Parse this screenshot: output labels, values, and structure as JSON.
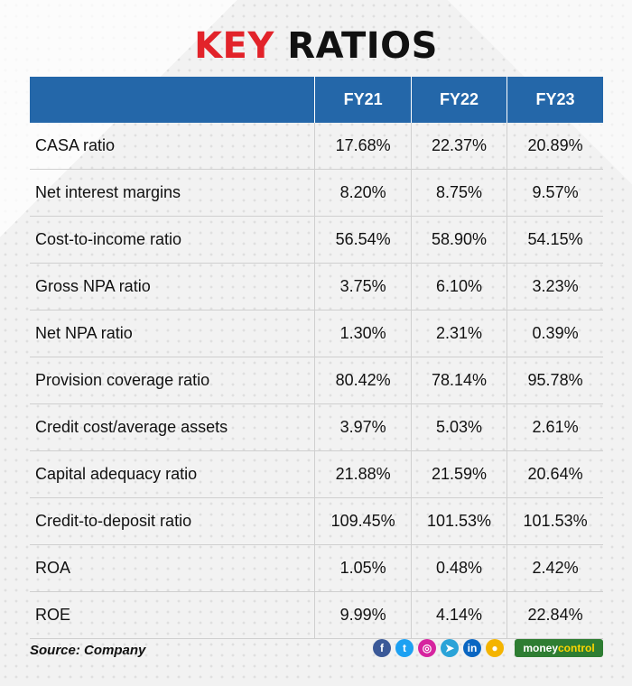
{
  "title": {
    "part1": "KEY",
    "part2": "RATIOS"
  },
  "table": {
    "columns": [
      "",
      "FY21",
      "FY22",
      "FY23"
    ],
    "rows": [
      {
        "label": "CASA ratio",
        "values": [
          "17.68%",
          "22.37%",
          "20.89%"
        ]
      },
      {
        "label": "Net interest margins",
        "values": [
          "8.20%",
          "8.75%",
          "9.57%"
        ]
      },
      {
        "label": "Cost-to-income ratio",
        "values": [
          "56.54%",
          "58.90%",
          "54.15%"
        ]
      },
      {
        "label": "Gross NPA ratio",
        "values": [
          "3.75%",
          "6.10%",
          "3.23%"
        ]
      },
      {
        "label": "Net NPA ratio",
        "values": [
          "1.30%",
          "2.31%",
          "0.39%"
        ]
      },
      {
        "label": "Provision coverage ratio",
        "values": [
          "80.42%",
          "78.14%",
          "95.78%"
        ]
      },
      {
        "label": "Credit cost/average assets",
        "values": [
          "3.97%",
          "5.03%",
          "2.61%"
        ]
      },
      {
        "label": "Capital adequacy ratio",
        "values": [
          "21.88%",
          "21.59%",
          "20.64%"
        ]
      },
      {
        "label": "Credit-to-deposit ratio",
        "values": [
          "109.45%",
          "101.53%",
          "101.53%"
        ]
      },
      {
        "label": "ROA",
        "values": [
          "1.05%",
          "0.48%",
          "2.42%"
        ]
      },
      {
        "label": "ROE",
        "values": [
          "9.99%",
          "4.14%",
          "22.84%"
        ]
      }
    ]
  },
  "chart_data": {
    "type": "table",
    "title": "KEY RATIOS",
    "columns": [
      "FY21",
      "FY22",
      "FY23"
    ],
    "rows": [
      {
        "label": "CASA ratio",
        "values": [
          "17.68%",
          "22.37%",
          "20.89%"
        ]
      },
      {
        "label": "Net interest margins",
        "values": [
          "8.20%",
          "8.75%",
          "9.57%"
        ]
      },
      {
        "label": "Cost-to-income ratio",
        "values": [
          "56.54%",
          "58.90%",
          "54.15%"
        ]
      },
      {
        "label": "Gross NPA ratio",
        "values": [
          "3.75%",
          "6.10%",
          "3.23%"
        ]
      },
      {
        "label": "Net NPA ratio",
        "values": [
          "1.30%",
          "2.31%",
          "0.39%"
        ]
      },
      {
        "label": "Provision coverage ratio",
        "values": [
          "80.42%",
          "78.14%",
          "95.78%"
        ]
      },
      {
        "label": "Credit cost/average assets",
        "values": [
          "3.97%",
          "5.03%",
          "2.61%"
        ]
      },
      {
        "label": "Capital adequacy ratio",
        "values": [
          "21.88%",
          "21.59%",
          "20.64%"
        ]
      },
      {
        "label": "Credit-to-deposit ratio",
        "values": [
          "109.45%",
          "101.53%",
          "101.53%"
        ]
      },
      {
        "label": "ROA",
        "values": [
          "1.05%",
          "0.48%",
          "2.42%"
        ]
      },
      {
        "label": "ROE",
        "values": [
          "9.99%",
          "4.14%",
          "22.84%"
        ]
      }
    ]
  },
  "footer": {
    "source": "Source: Company",
    "social_icons": [
      {
        "name": "facebook-icon",
        "glyph": "f",
        "color": "#3b5998"
      },
      {
        "name": "twitter-icon",
        "glyph": "t",
        "color": "#1da1f2"
      },
      {
        "name": "instagram-icon",
        "glyph": "◎",
        "color": "#d6249f"
      },
      {
        "name": "telegram-icon",
        "glyph": "➤",
        "color": "#2aa3d8"
      },
      {
        "name": "linkedin-icon",
        "glyph": "in",
        "color": "#0a66c2"
      },
      {
        "name": "podcast-icon",
        "glyph": "●",
        "color": "#f4b400"
      }
    ],
    "brand": {
      "part1": "money",
      "part2": "control"
    }
  },
  "colors": {
    "header_bg": "#2467a9",
    "title_accent": "#e2232a",
    "brand_bg": "#2e7d32"
  }
}
